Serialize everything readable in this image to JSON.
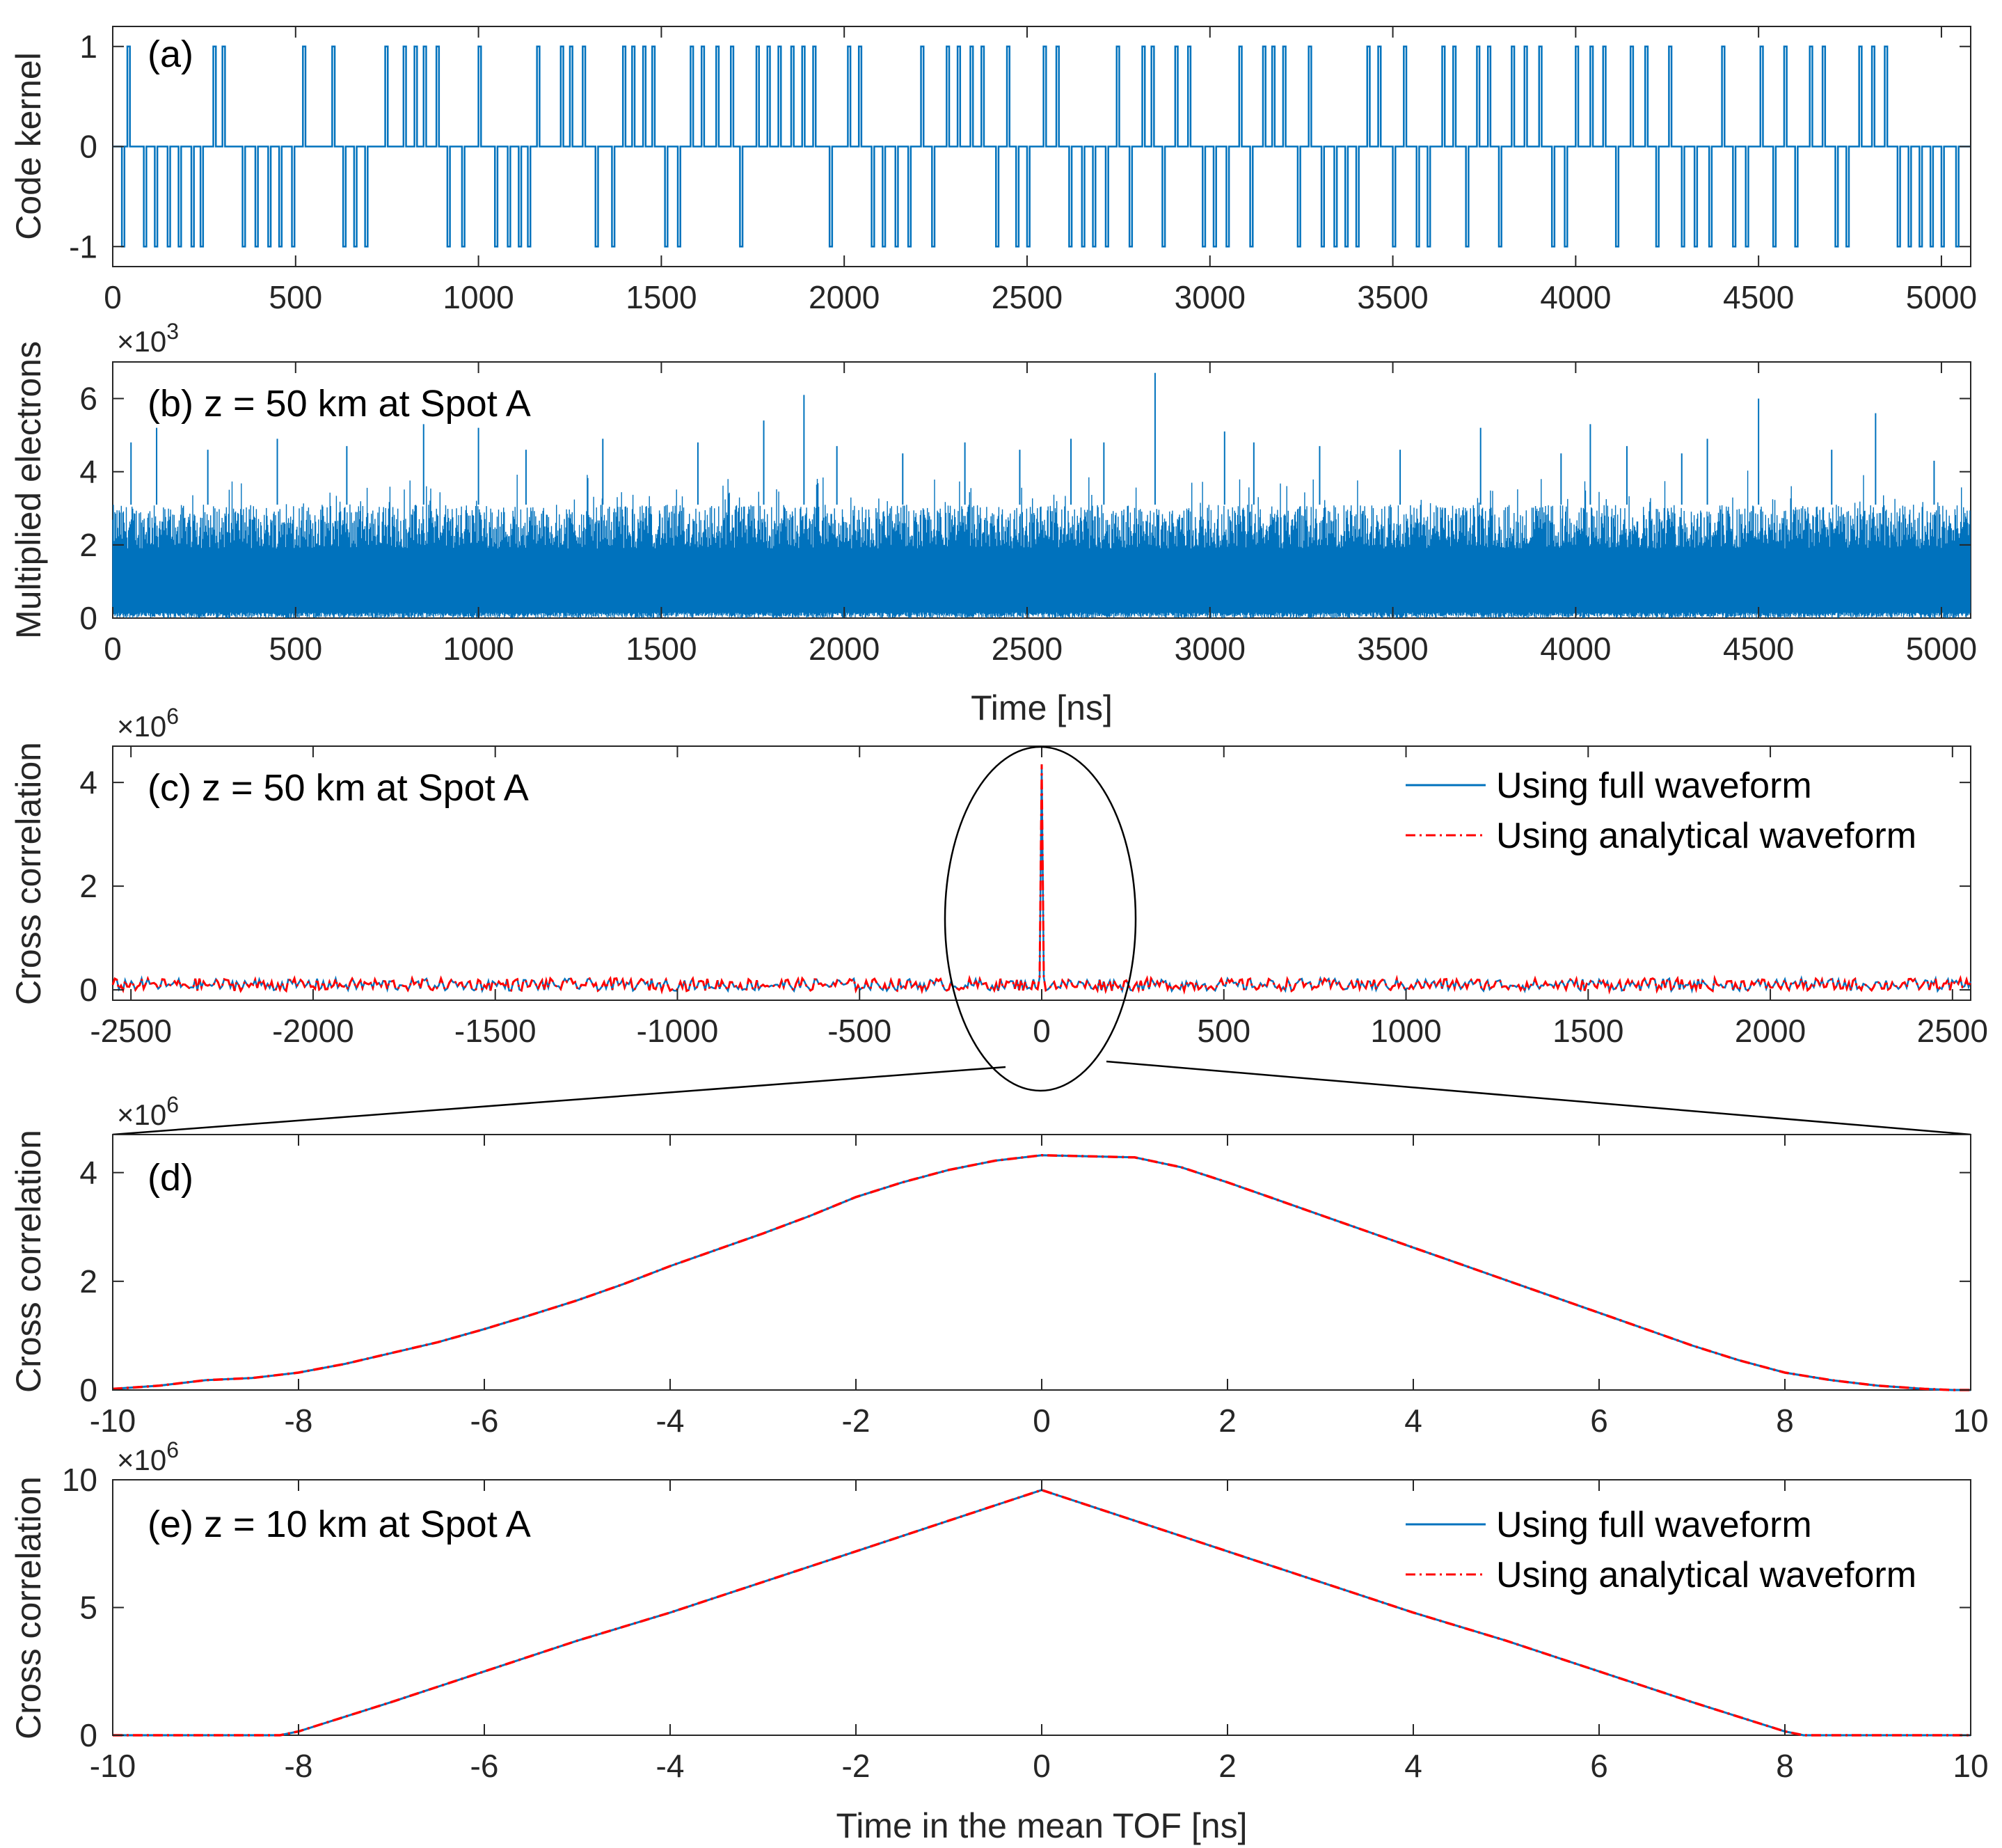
{
  "chart_data": [
    {
      "id": "a",
      "type": "line",
      "panel_label": "(a)",
      "ylabel": "Code kernel",
      "xlabel": "",
      "xlim": [
        0,
        5080
      ],
      "ylim": [
        -1.2,
        1.2
      ],
      "xticks": [
        0,
        500,
        1000,
        1500,
        2000,
        2500,
        3000,
        3500,
        4000,
        4500,
        5000
      ],
      "yticks": [
        -1,
        0,
        1
      ],
      "series": [
        {
          "name": "code",
          "color": "#0072BD",
          "style": "solid",
          "pulses": [
            [
              25,
              -1
            ],
            [
              40,
              1
            ],
            [
              85,
              -1
            ],
            [
              115,
              -1
            ],
            [
              150,
              -1
            ],
            [
              180,
              -1
            ],
            [
              215,
              -1
            ],
            [
              240,
              -1
            ],
            [
              275,
              1
            ],
            [
              300,
              1
            ],
            [
              355,
              -1
            ],
            [
              390,
              -1
            ],
            [
              425,
              -1
            ],
            [
              455,
              -1
            ],
            [
              490,
              -1
            ],
            [
              520,
              1
            ],
            [
              600,
              1
            ],
            [
              630,
              -1
            ],
            [
              660,
              -1
            ],
            [
              690,
              -1
            ],
            [
              745,
              1
            ],
            [
              795,
              1
            ],
            [
              825,
              1
            ],
            [
              850,
              1
            ],
            [
              885,
              1
            ],
            [
              915,
              -1
            ],
            [
              955,
              -1
            ],
            [
              1000,
              1
            ],
            [
              1045,
              -1
            ],
            [
              1080,
              -1
            ],
            [
              1110,
              -1
            ],
            [
              1135,
              -1
            ],
            [
              1160,
              1
            ],
            [
              1225,
              1
            ],
            [
              1250,
              1
            ],
            [
              1285,
              1
            ],
            [
              1320,
              -1
            ],
            [
              1365,
              -1
            ],
            [
              1395,
              1
            ],
            [
              1420,
              1
            ],
            [
              1450,
              1
            ],
            [
              1475,
              1
            ],
            [
              1510,
              -1
            ],
            [
              1545,
              -1
            ],
            [
              1580,
              1
            ],
            [
              1610,
              1
            ],
            [
              1650,
              1
            ],
            [
              1690,
              1
            ],
            [
              1715,
              -1
            ],
            [
              1760,
              1
            ],
            [
              1790,
              1
            ],
            [
              1820,
              1
            ],
            [
              1855,
              1
            ],
            [
              1885,
              1
            ],
            [
              1915,
              1
            ],
            [
              1960,
              -1
            ],
            [
              2010,
              1
            ],
            [
              2040,
              1
            ],
            [
              2075,
              -1
            ],
            [
              2105,
              -1
            ],
            [
              2140,
              -1
            ],
            [
              2175,
              -1
            ],
            [
              2210,
              1
            ],
            [
              2240,
              -1
            ],
            [
              2280,
              1
            ],
            [
              2310,
              1
            ],
            [
              2345,
              1
            ],
            [
              2375,
              1
            ],
            [
              2415,
              -1
            ],
            [
              2445,
              1
            ],
            [
              2470,
              -1
            ],
            [
              2500,
              -1
            ],
            [
              2545,
              1
            ],
            [
              2580,
              1
            ],
            [
              2615,
              -1
            ],
            [
              2650,
              -1
            ],
            [
              2680,
              -1
            ],
            [
              2715,
              -1
            ],
            [
              2745,
              1
            ],
            [
              2780,
              -1
            ],
            [
              2815,
              1
            ],
            [
              2840,
              1
            ],
            [
              2870,
              -1
            ],
            [
              2905,
              1
            ],
            [
              2940,
              1
            ],
            [
              2980,
              -1
            ],
            [
              3010,
              -1
            ],
            [
              3045,
              -1
            ],
            [
              3080,
              1
            ],
            [
              3110,
              -1
            ],
            [
              3145,
              1
            ],
            [
              3170,
              1
            ],
            [
              3200,
              1
            ],
            [
              3240,
              -1
            ],
            [
              3270,
              1
            ],
            [
              3305,
              -1
            ],
            [
              3340,
              -1
            ],
            [
              3370,
              -1
            ],
            [
              3400,
              -1
            ],
            [
              3430,
              1
            ],
            [
              3460,
              1
            ],
            [
              3500,
              -1
            ],
            [
              3530,
              1
            ],
            [
              3565,
              -1
            ],
            [
              3595,
              -1
            ],
            [
              3635,
              1
            ],
            [
              3665,
              1
            ],
            [
              3700,
              -1
            ],
            [
              3730,
              1
            ],
            [
              3760,
              1
            ],
            [
              3790,
              -1
            ],
            [
              3825,
              1
            ],
            [
              3860,
              1
            ],
            [
              3900,
              1
            ],
            [
              3935,
              -1
            ],
            [
              3970,
              -1
            ],
            [
              4000,
              1
            ],
            [
              4040,
              1
            ],
            [
              4075,
              1
            ],
            [
              4110,
              -1
            ],
            [
              4150,
              1
            ],
            [
              4190,
              1
            ],
            [
              4220,
              -1
            ],
            [
              4255,
              1
            ],
            [
              4290,
              -1
            ],
            [
              4325,
              -1
            ],
            [
              4365,
              -1
            ],
            [
              4400,
              1
            ],
            [
              4430,
              -1
            ],
            [
              4465,
              -1
            ],
            [
              4505,
              1
            ],
            [
              4540,
              -1
            ],
            [
              4570,
              1
            ],
            [
              4600,
              -1
            ],
            [
              4640,
              1
            ],
            [
              4675,
              1
            ],
            [
              4710,
              -1
            ],
            [
              4740,
              -1
            ],
            [
              4775,
              1
            ],
            [
              4810,
              1
            ],
            [
              4845,
              1
            ],
            [
              4880,
              -1
            ],
            [
              4910,
              -1
            ],
            [
              4940,
              -1
            ],
            [
              4970,
              -1
            ],
            [
              5000,
              -1
            ],
            [
              5040,
              -1
            ]
          ]
        }
      ]
    },
    {
      "id": "b",
      "type": "line",
      "panel_label": "(b) z = 50 km at Spot A",
      "ylabel": "Multiplied electrons",
      "xlabel": "Time [ns]",
      "exponent": "3",
      "xlim": [
        0,
        5080
      ],
      "ylim": [
        0,
        7
      ],
      "xticks": [
        0,
        500,
        1000,
        1500,
        2000,
        2500,
        3000,
        3500,
        4000,
        4500,
        5000
      ],
      "yticks": [
        0,
        2,
        4,
        6
      ],
      "band": {
        "low": 0.15,
        "mid": 1.9,
        "high": 3.1
      },
      "spikes": [
        [
          50,
          4.8
        ],
        [
          120,
          5.2
        ],
        [
          260,
          4.6
        ],
        [
          450,
          4.9
        ],
        [
          640,
          4.7
        ],
        [
          850,
          5.3
        ],
        [
          1000,
          5.2
        ],
        [
          1130,
          4.6
        ],
        [
          1340,
          4.9
        ],
        [
          1600,
          4.8
        ],
        [
          1780,
          5.4
        ],
        [
          1890,
          6.1
        ],
        [
          1980,
          4.7
        ],
        [
          2160,
          4.5
        ],
        [
          2330,
          4.8
        ],
        [
          2480,
          4.6
        ],
        [
          2620,
          4.9
        ],
        [
          2710,
          4.8
        ],
        [
          2850,
          6.7
        ],
        [
          3040,
          5.1
        ],
        [
          3120,
          4.8
        ],
        [
          3300,
          4.7
        ],
        [
          3520,
          4.6
        ],
        [
          3740,
          5.2
        ],
        [
          3960,
          4.5
        ],
        [
          4040,
          5.3
        ],
        [
          4140,
          4.7
        ],
        [
          4290,
          4.5
        ],
        [
          4360,
          4.9
        ],
        [
          4500,
          6.0
        ],
        [
          4700,
          4.6
        ],
        [
          4820,
          5.6
        ],
        [
          4980,
          4.3
        ]
      ],
      "series": [
        {
          "name": "electrons",
          "color": "#0072BD",
          "style": "solid"
        }
      ]
    },
    {
      "id": "c",
      "type": "line",
      "panel_label": "(c) z = 50 km at Spot A",
      "ylabel": "Cross correlation",
      "xlabel": "",
      "exponent": "6",
      "xlim": [
        -2550,
        2550
      ],
      "ylim": [
        -0.2,
        4.7
      ],
      "xticks": [
        -2500,
        -2000,
        -1500,
        -1000,
        -500,
        0,
        500,
        1000,
        1500,
        2000,
        2500
      ],
      "yticks": [
        0,
        2,
        4
      ],
      "peak": 4.35,
      "noise_amp": 0.12,
      "series": [
        {
          "name": "Using full waveform",
          "color": "#0072BD",
          "style": "solid"
        },
        {
          "name": "Using analytical waveform",
          "color": "#FF0000",
          "style": "dashdot"
        }
      ]
    },
    {
      "id": "d",
      "type": "line",
      "panel_label": "(d)",
      "ylabel": "Cross correlation",
      "xlabel": "",
      "exponent": "6",
      "xlim": [
        -10,
        10
      ],
      "ylim": [
        0,
        4.7
      ],
      "xticks": [
        -10,
        -8,
        -6,
        -4,
        -2,
        0,
        2,
        4,
        6,
        8,
        10
      ],
      "yticks": [
        0,
        2,
        4
      ],
      "series": [
        {
          "name": "Using full waveform",
          "color": "#0072BD",
          "style": "solid",
          "x": [
            -10,
            -9.5,
            -9,
            -8.5,
            -8,
            -7.5,
            -7,
            -6.5,
            -6,
            -5.5,
            -5,
            -4.5,
            -4,
            -3.5,
            -3,
            -2.5,
            -2,
            -1.5,
            -1,
            -0.5,
            0,
            0.5,
            1,
            1.5,
            2,
            2.5,
            3,
            3.5,
            4,
            4.5,
            5,
            5.5,
            6,
            6.5,
            7,
            7.5,
            8,
            8.5,
            9,
            9.5,
            9.8,
            10
          ],
          "y": [
            0.02,
            0.08,
            0.18,
            0.22,
            0.32,
            0.48,
            0.68,
            0.88,
            1.12,
            1.38,
            1.65,
            1.95,
            2.28,
            2.58,
            2.88,
            3.2,
            3.55,
            3.82,
            4.05,
            4.22,
            4.32,
            4.3,
            4.28,
            4.1,
            3.82,
            3.52,
            3.22,
            2.92,
            2.62,
            2.32,
            2.02,
            1.72,
            1.42,
            1.12,
            0.82,
            0.55,
            0.32,
            0.18,
            0.08,
            0.02,
            0.0,
            0.0
          ]
        },
        {
          "name": "Using analytical waveform",
          "color": "#FF0000",
          "style": "dashdot"
        }
      ]
    },
    {
      "id": "e",
      "type": "line",
      "panel_label": "(e) z = 10 km at Spot A",
      "ylabel": "Cross correlation",
      "xlabel": "Time in the mean TOF [ns]",
      "exponent": "6",
      "xlim": [
        -10,
        10
      ],
      "ylim": [
        0,
        10
      ],
      "xticks": [
        -10,
        -8,
        -6,
        -4,
        -2,
        0,
        2,
        4,
        6,
        8,
        10
      ],
      "yticks": [
        0,
        5,
        10
      ],
      "series": [
        {
          "name": "Using full waveform",
          "color": "#0072BD",
          "style": "solid",
          "x": [
            -10,
            -8.2,
            -8,
            -7,
            -6,
            -5,
            -4,
            -3,
            -2,
            -1,
            0,
            1,
            2,
            3,
            4,
            5,
            6,
            7,
            8,
            8.2,
            10
          ],
          "y": [
            0,
            0,
            0.15,
            1.3,
            2.5,
            3.7,
            4.8,
            6.0,
            7.2,
            8.4,
            9.6,
            8.4,
            7.2,
            6.0,
            4.8,
            3.7,
            2.5,
            1.3,
            0.15,
            0,
            0
          ]
        },
        {
          "name": "Using analytical waveform",
          "color": "#FF0000",
          "style": "dashdot"
        }
      ]
    }
  ]
}
